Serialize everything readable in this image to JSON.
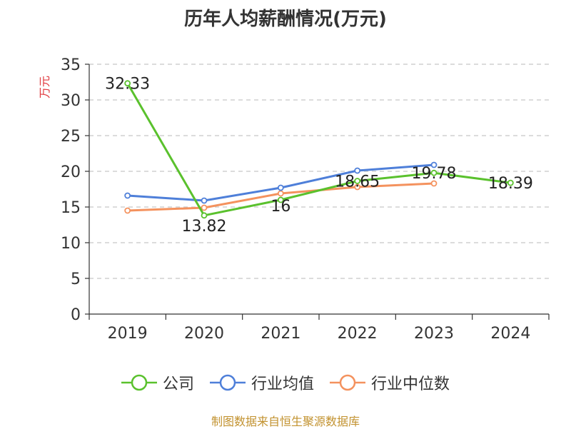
{
  "title": "历年人均薪酬情况(万元)",
  "source": "制图数据来自恒生聚源数据库",
  "chart_data": {
    "type": "line",
    "title": "历年人均薪酬情况(万元)",
    "ylabel": "万元",
    "xlabel": "",
    "ylim": [
      0,
      35
    ],
    "yticks": [
      0,
      5,
      10,
      15,
      20,
      25,
      30,
      35
    ],
    "grid": true,
    "legend_position": "bottom",
    "categories": [
      "2019",
      "2020",
      "2021",
      "2022",
      "2023",
      "2024"
    ],
    "series": [
      {
        "name": "公司",
        "color": "#5ac12d",
        "labels": true,
        "values": [
          32.33,
          13.82,
          16,
          18.65,
          19.78,
          18.39
        ]
      },
      {
        "name": "行业均值",
        "color": "#4e7fd9",
        "labels": false,
        "values": [
          16.6,
          15.9,
          17.7,
          20.1,
          20.9,
          null
        ]
      },
      {
        "name": "行业中位数",
        "color": "#f4925e",
        "labels": false,
        "values": [
          14.5,
          14.9,
          16.9,
          17.8,
          18.3,
          null
        ]
      }
    ]
  }
}
